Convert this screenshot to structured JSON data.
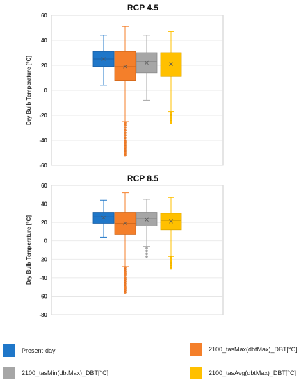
{
  "chart_data": [
    {
      "type": "box",
      "title": "RCP 4.5",
      "ylabel": "Dry Bulb Temperature [°C]",
      "ylim": [
        -60,
        60
      ],
      "yticks": [
        -60,
        -40,
        -20,
        0,
        20,
        40,
        60
      ],
      "grid": true,
      "series": [
        {
          "name": "Present-day",
          "color": "#1f77c9",
          "whisker_low": 4,
          "q1": 19,
          "median": 25,
          "mean": 25,
          "q3": 31,
          "whisker_high": 44,
          "outliers": []
        },
        {
          "name": "2100_tasMax(dbtMax)_DBT[°C]",
          "color": "#f47f2a",
          "whisker_low": -25,
          "q1": 8,
          "median": 19,
          "mean": 19,
          "q3": 31,
          "whisker_high": 51,
          "outliers": [
            -26,
            -28,
            -30,
            -32,
            -34,
            -36,
            -38,
            -40,
            -41,
            -42,
            -43,
            -44,
            -45,
            -46,
            -47,
            -48,
            -49,
            -50,
            -51,
            -52
          ]
        },
        {
          "name": "2100_tasMin(dbtMax)_DBT[°C]",
          "color": "#a6a6a6",
          "whisker_low": -8,
          "q1": 14,
          "median": 23,
          "mean": 22,
          "q3": 30,
          "whisker_high": 44,
          "outliers": []
        },
        {
          "name": "2100_tasAvg(dbtMax)_DBT[°C]",
          "color": "#ffc000",
          "whisker_low": -17,
          "q1": 11,
          "median": 22,
          "mean": 21,
          "q3": 30,
          "whisker_high": 47,
          "outliers": [
            -18,
            -19,
            -20,
            -21,
            -22,
            -23,
            -24,
            -25,
            -26
          ]
        }
      ]
    },
    {
      "type": "box",
      "title": "RCP 8.5",
      "ylabel": "Dry Bulb Temperature [°C]",
      "ylim": [
        -80,
        60
      ],
      "yticks": [
        -80,
        -60,
        -40,
        -20,
        0,
        20,
        40,
        60
      ],
      "grid": true,
      "series": [
        {
          "name": "Present-day",
          "color": "#1f77c9",
          "whisker_low": 4,
          "q1": 19,
          "median": 26,
          "mean": 25,
          "q3": 31,
          "whisker_high": 44,
          "outliers": []
        },
        {
          "name": "2100_tasMax(dbtMax)_DBT[°C]",
          "color": "#f47f2a",
          "whisker_low": -28,
          "q1": 7,
          "median": 19,
          "mean": 19,
          "q3": 31,
          "whisker_high": 52,
          "outliers": [
            -29,
            -31,
            -33,
            -35,
            -37,
            -40,
            -42,
            -44,
            -46,
            -48,
            -50,
            -52,
            -54,
            -56
          ]
        },
        {
          "name": "2100_tasMin(dbtMax)_DBT[°C]",
          "color": "#a6a6a6",
          "whisker_low": -6,
          "q1": 16,
          "median": 24,
          "mean": 23,
          "q3": 31,
          "whisker_high": 45,
          "outliers": [
            -8,
            -11,
            -14,
            -17
          ]
        },
        {
          "name": "2100_tasAvg(dbtMax)_DBT[°C]",
          "color": "#ffc000",
          "whisker_low": -17,
          "q1": 12,
          "median": 22,
          "mean": 21,
          "q3": 30,
          "whisker_high": 47,
          "outliers": [
            -18,
            -20,
            -22,
            -24,
            -26,
            -28,
            -30
          ]
        }
      ]
    }
  ],
  "legend": {
    "placement": "bottom",
    "items": [
      {
        "label": "Present-day",
        "color": "#1f77c9"
      },
      {
        "label": "2100_tasMax(dbtMax)_DBT[°C]",
        "color": "#f47f2a"
      },
      {
        "label": "2100_tasMin(dbtMax)_DBT[°C]",
        "color": "#a6a6a6"
      },
      {
        "label": "2100_tasAvg(dbtMax)_DBT[°C]",
        "color": "#ffc000"
      }
    ]
  }
}
